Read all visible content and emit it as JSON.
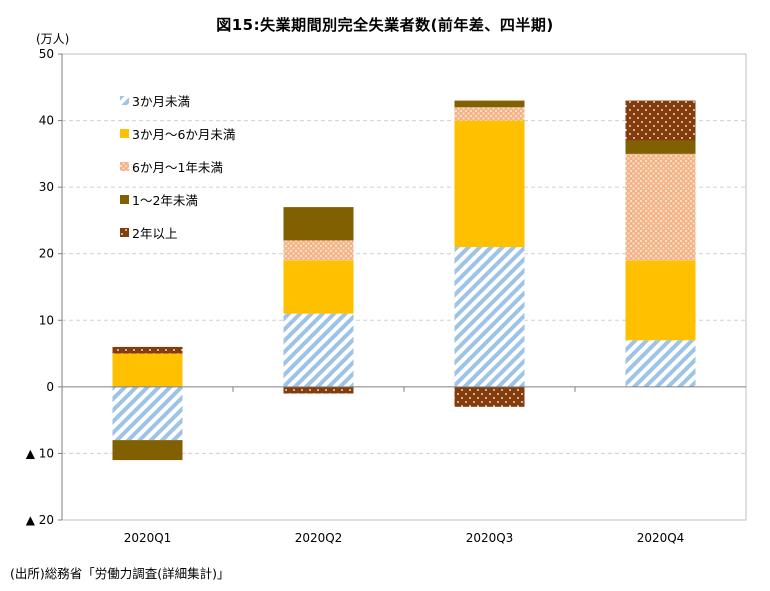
{
  "chart_data": {
    "type": "bar",
    "stacked": true,
    "title": "図15:失業期間別完全失業者数(前年差、四半期)",
    "unit": "(万人)",
    "source": "(出所)総務省「労働力調査(詳細集計)」",
    "categories": [
      "2020Q1",
      "2020Q2",
      "2020Q3",
      "2020Q4"
    ],
    "ylim": [
      -20,
      50
    ],
    "yticks": [
      {
        "value": 50,
        "label": "50"
      },
      {
        "value": 40,
        "label": "40"
      },
      {
        "value": 30,
        "label": "30"
      },
      {
        "value": 20,
        "label": "20"
      },
      {
        "value": 10,
        "label": "10"
      },
      {
        "value": 0,
        "label": "0"
      },
      {
        "value": -10,
        "label": "▲ 10"
      },
      {
        "value": -20,
        "label": "▲ 20"
      }
    ],
    "grid": true,
    "legend_position": "top-left",
    "series": [
      {
        "name": "3か月未満",
        "pattern": "diagonal-stripes",
        "color": "#9dc3e6",
        "values": [
          -8,
          11,
          21,
          7
        ]
      },
      {
        "name": "3か月～6か月未満",
        "pattern": "solid",
        "color": "#ffc000",
        "values": [
          5,
          8,
          19,
          12
        ]
      },
      {
        "name": "6か月～1年未満",
        "pattern": "crosshatch",
        "color": "#f4b183",
        "values": [
          0,
          3,
          2,
          16
        ]
      },
      {
        "name": "1～2年未満",
        "pattern": "solid",
        "color": "#806000",
        "values": [
          -3,
          5,
          1,
          2
        ]
      },
      {
        "name": "2年以上",
        "pattern": "dots",
        "color": "#843c0c",
        "values": [
          1,
          -1,
          -3,
          6
        ]
      }
    ]
  }
}
